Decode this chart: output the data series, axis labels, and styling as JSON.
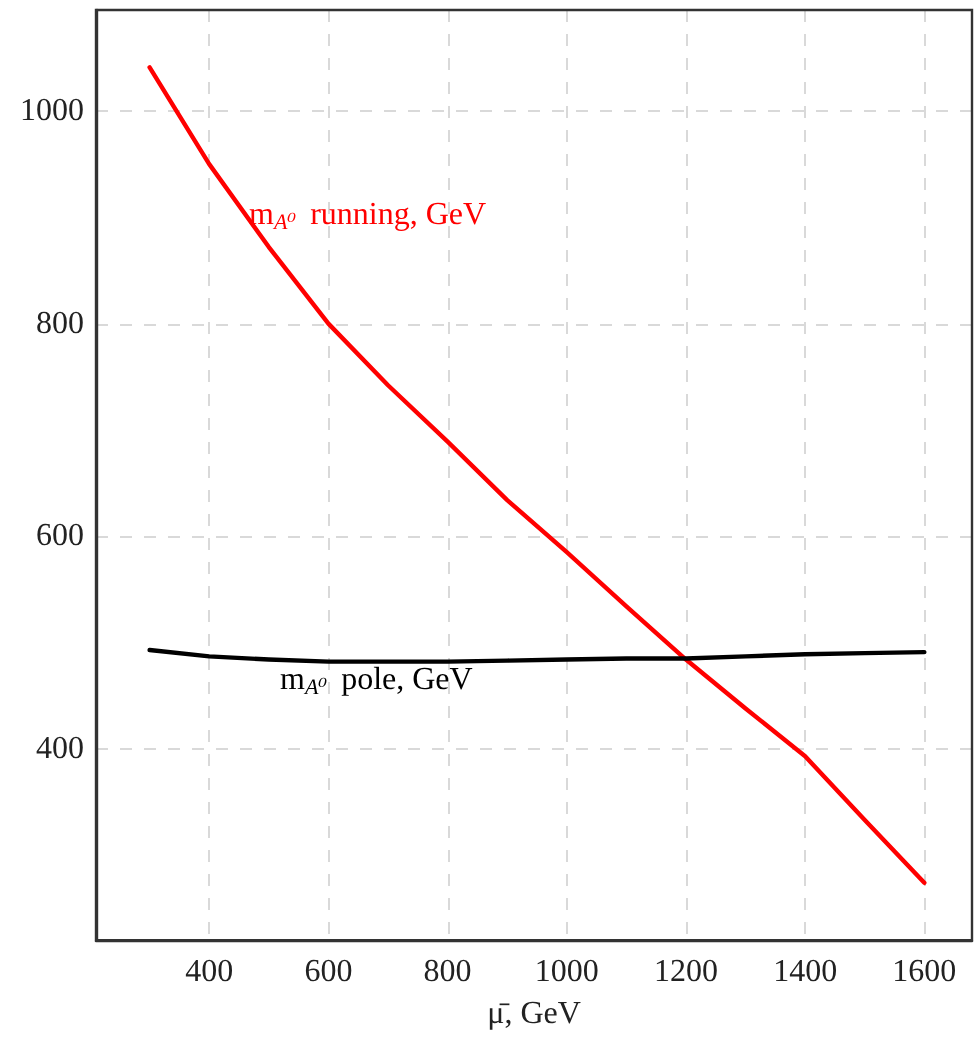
{
  "chart_data": {
    "type": "line",
    "xlabel": "μ̄, GeV",
    "x": [
      300,
      400,
      500,
      600,
      700,
      800,
      900,
      1000,
      1100,
      1200,
      1300,
      1400,
      1500,
      1600
    ],
    "series": [
      {
        "color": "#ff0000",
        "values": [
          1041,
          950,
          872,
          800,
          742,
          689,
          634,
          585,
          534,
          484,
          438,
          393,
          333,
          274
        ]
      },
      {
        "color": "#000000",
        "values": [
          493,
          487,
          484,
          482,
          482,
          482,
          483,
          484,
          485,
          485,
          487,
          489,
          490,
          491
        ]
      }
    ],
    "annotations": [
      "m$_{A⁰}$ running, GeV",
      "m$_{A⁰}$ pole, GeV"
    ],
    "xlim": [
      210,
      1680
    ],
    "ylim": [
      220,
      1095
    ],
    "xticks": [
      400,
      600,
      800,
      1000,
      1200,
      1400,
      1600
    ],
    "yticks": [
      400,
      600,
      800,
      1000
    ],
    "grid": true,
    "marker": "none",
    "line_style": "solid"
  }
}
